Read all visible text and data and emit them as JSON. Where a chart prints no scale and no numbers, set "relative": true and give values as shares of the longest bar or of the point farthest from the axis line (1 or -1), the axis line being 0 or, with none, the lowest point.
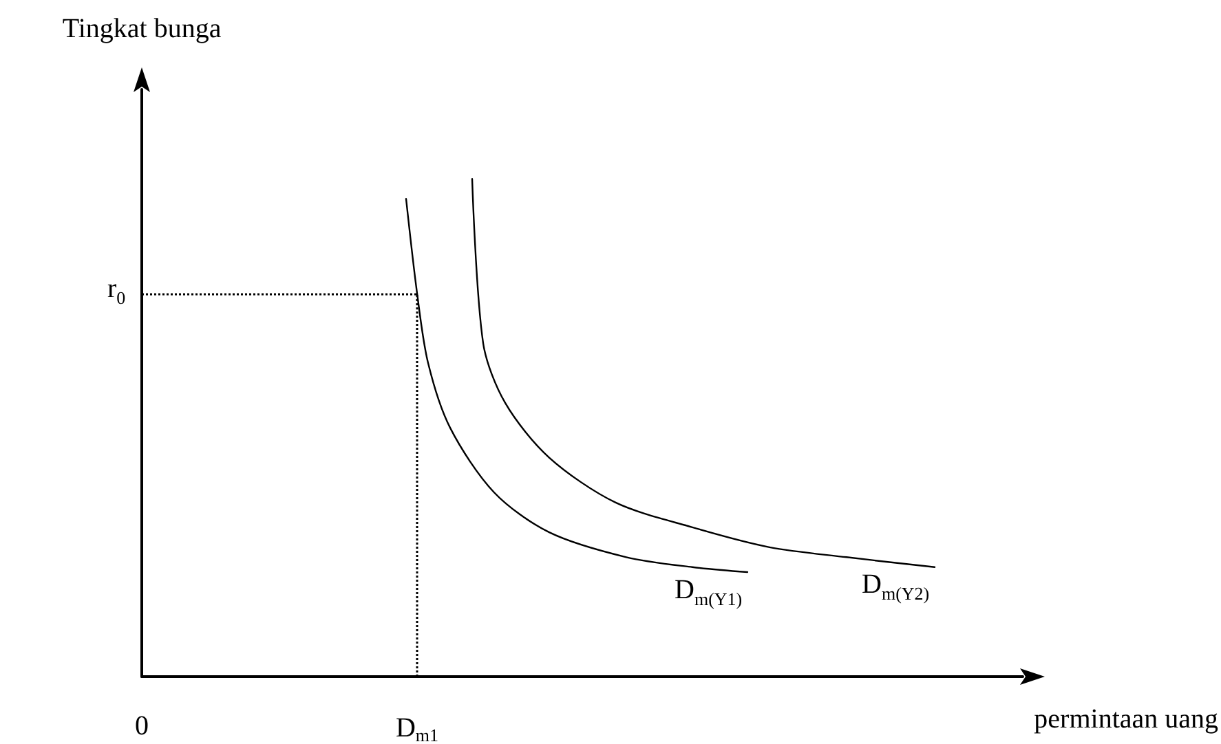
{
  "chart_data": {
    "type": "line",
    "relative": true,
    "xlabel": "permintaan uang",
    "ylabel": "Tingkat bunga",
    "legend": false,
    "grid": false,
    "marker": "none",
    "categories": [
      "0",
      null,
      null,
      null,
      null,
      null,
      null,
      null,
      null,
      null,
      null,
      null,
      null,
      null,
      null,
      null,
      null,
      null,
      null,
      null,
      null,
      null,
      null,
      null,
      null,
      "D$_{m1}$",
      null,
      null,
      null,
      null,
      null,
      null,
      null,
      null,
      null,
      null,
      null,
      null,
      null,
      null,
      null,
      null,
      null,
      null,
      null,
      null,
      null,
      null,
      null,
      null,
      null,
      null,
      null,
      null,
      null,
      null,
      null,
      null,
      null,
      null,
      null,
      null,
      null,
      null,
      null,
      null,
      null,
      null,
      null,
      null,
      null,
      null,
      null,
      null,
      null,
      null,
      null,
      null,
      null,
      null,
      null
    ],
    "series": [
      {
        "name": "D$_{m(Y1)}$",
        "color": "#000000",
        "values": [
          null,
          null,
          null,
          null,
          null,
          null,
          null,
          null,
          null,
          null,
          null,
          null,
          null,
          null,
          null,
          null,
          null,
          null,
          null,
          null,
          null,
          null,
          null,
          null,
          0.96,
          0.77,
          0.63,
          null,
          0.5,
          null,
          null,
          null,
          0.37,
          null,
          null,
          null,
          null,
          0.29,
          null,
          null,
          null,
          null,
          null,
          null,
          0.24,
          null,
          null,
          null,
          null,
          null,
          0.22,
          null,
          null,
          null,
          null,
          0.21,
          null,
          null,
          null,
          null,
          null,
          null,
          null,
          null,
          null,
          null,
          null,
          null,
          null,
          null,
          null,
          null,
          null,
          null,
          null,
          null,
          null,
          null,
          null,
          null,
          null
        ]
      },
      {
        "name": "D$_{m(Y2)}$",
        "color": "#000000",
        "values": [
          null,
          null,
          null,
          null,
          null,
          null,
          null,
          null,
          null,
          null,
          null,
          null,
          null,
          null,
          null,
          null,
          null,
          null,
          null,
          null,
          null,
          null,
          null,
          null,
          null,
          null,
          null,
          null,
          null,
          null,
          1,
          0.67,
          null,
          0.55,
          null,
          null,
          null,
          0.44,
          null,
          null,
          null,
          null,
          null,
          0.35,
          null,
          null,
          null,
          null,
          null,
          null,
          0.3,
          null,
          null,
          null,
          null,
          null,
          null,
          0.26,
          null,
          null,
          null,
          null,
          null,
          null,
          0.24,
          null,
          null,
          null,
          null,
          null,
          null,
          null,
          0.22,
          null,
          null,
          null,
          null,
          null,
          null,
          null,
          null
        ]
      }
    ],
    "ref_lines": [
      {
        "axis": "y",
        "value": 0.77,
        "label": "r$_{0}$",
        "line_style": "dotted"
      },
      {
        "axis": "x",
        "value": "D$_{m1}$",
        "line_style": "dotted"
      }
    ]
  }
}
